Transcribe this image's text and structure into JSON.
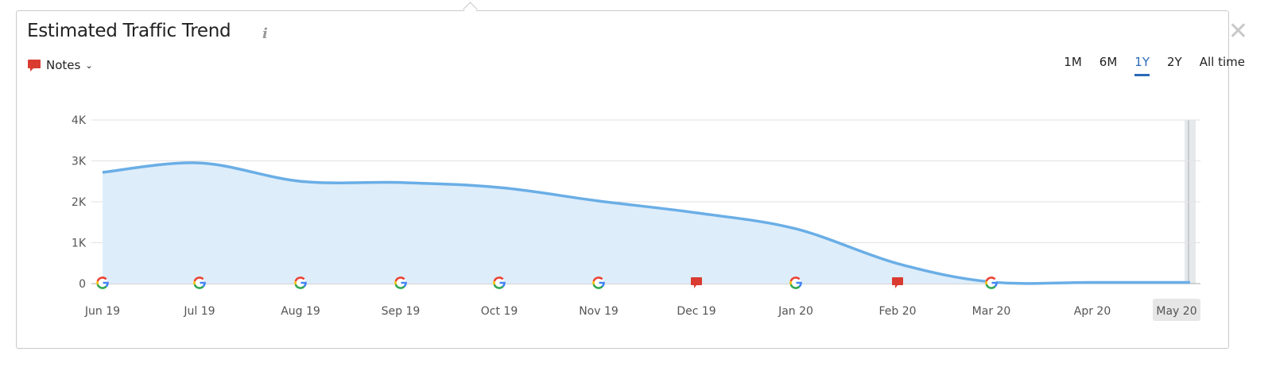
{
  "header": {
    "title": "Estimated Traffic Trend",
    "info_icon": "info-icon",
    "close_icon": "close-icon"
  },
  "notes": {
    "label": "Notes",
    "icon": "note-bubble-icon"
  },
  "ranges": [
    {
      "label": "1M"
    },
    {
      "label": "6M"
    },
    {
      "label": "1Y",
      "active": true
    },
    {
      "label": "2Y"
    },
    {
      "label": "All time"
    }
  ],
  "colors": {
    "line": "#6aaee6",
    "fill": "#deedfa",
    "accent": "#2a6ab8",
    "note": "#d93b30"
  },
  "chart_data": {
    "type": "area",
    "categories": [
      "Jun 19",
      "Jul 19",
      "Aug 19",
      "Sep 19",
      "Oct 19",
      "Nov 19",
      "Dec 19",
      "Jan 20",
      "Feb 20",
      "Mar 20",
      "Apr 20",
      "May 20"
    ],
    "values": [
      2720,
      2950,
      2500,
      2470,
      2350,
      2020,
      1730,
      1340,
      490,
      40,
      30,
      30
    ],
    "yticks": [
      "0",
      "1K",
      "2K",
      "3K",
      "4K"
    ],
    "ylim": [
      0,
      4000
    ],
    "grid": true,
    "highlighted_category": "May 20",
    "markers": [
      "google",
      "google",
      "google",
      "google",
      "google",
      "google",
      "note",
      "google",
      "note",
      "google",
      null,
      null
    ]
  }
}
